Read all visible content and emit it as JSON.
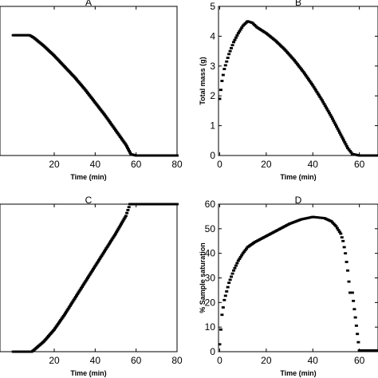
{
  "chart_data": [
    {
      "type": "scatter",
      "title": "A",
      "xlabel": "Time (min)",
      "ylabel": "",
      "xlim": [
        0,
        80
      ],
      "x_ticks": [
        20,
        40,
        60,
        80
      ],
      "y_ticks": [],
      "grid": false,
      "series": [
        {
          "points": [
            [
              0,
              1.0
            ],
            [
              8,
              1.0
            ],
            [
              10,
              0.98
            ],
            [
              15,
              0.91
            ],
            [
              20,
              0.83
            ],
            [
              25,
              0.74
            ],
            [
              30,
              0.65
            ],
            [
              35,
              0.55
            ],
            [
              40,
              0.44
            ],
            [
              45,
              0.33
            ],
            [
              50,
              0.21
            ],
            [
              55,
              0.09
            ],
            [
              57.5,
              0.01
            ],
            [
              60,
              0.0
            ],
            [
              70,
              0.0
            ],
            [
              80,
              0.0
            ]
          ]
        }
      ]
    },
    {
      "type": "scatter",
      "title": "B",
      "xlabel": "Time (min)",
      "ylabel": "Total mass (g)",
      "xlim": [
        0,
        68
      ],
      "ylim": [
        0,
        5
      ],
      "x_ticks": [
        0,
        20,
        40,
        60
      ],
      "y_ticks": [
        0,
        1,
        2,
        3,
        4,
        5
      ],
      "grid": false,
      "series": [
        {
          "points": [
            [
              0,
              1.9
            ],
            [
              1,
              2.5
            ],
            [
              2,
              2.9
            ],
            [
              4,
              3.4
            ],
            [
              6,
              3.8
            ],
            [
              8,
              4.1
            ],
            [
              10,
              4.35
            ],
            [
              12,
              4.5
            ],
            [
              14,
              4.45
            ],
            [
              16,
              4.3
            ],
            [
              20,
              4.1
            ],
            [
              24,
              3.85
            ],
            [
              28,
              3.55
            ],
            [
              32,
              3.2
            ],
            [
              36,
              2.8
            ],
            [
              40,
              2.35
            ],
            [
              44,
              1.85
            ],
            [
              48,
              1.3
            ],
            [
              52,
              0.7
            ],
            [
              55,
              0.25
            ],
            [
              57,
              0.05
            ],
            [
              60,
              0.0
            ],
            [
              68,
              0.0
            ]
          ]
        }
      ]
    },
    {
      "type": "scatter",
      "title": "C",
      "xlabel": "Time (min)",
      "ylabel": "",
      "xlim": [
        0,
        80
      ],
      "x_ticks": [
        20,
        40,
        60,
        80
      ],
      "y_ticks": [],
      "grid": false,
      "series": [
        {
          "points": [
            [
              0,
              0.0
            ],
            [
              9,
              0.0
            ],
            [
              10,
              0.01
            ],
            [
              15,
              0.07
            ],
            [
              20,
              0.15
            ],
            [
              25,
              0.25
            ],
            [
              30,
              0.36
            ],
            [
              35,
              0.47
            ],
            [
              40,
              0.58
            ],
            [
              45,
              0.69
            ],
            [
              50,
              0.8
            ],
            [
              55,
              0.92
            ],
            [
              57,
              1.0
            ],
            [
              60,
              1.0
            ],
            [
              70,
              1.0
            ],
            [
              80,
              1.0
            ]
          ]
        }
      ]
    },
    {
      "type": "scatter",
      "title": "D",
      "xlabel": "Time (min)",
      "ylabel": "% Sample saturation",
      "xlim": [
        0,
        68
      ],
      "ylim": [
        0,
        60
      ],
      "x_ticks": [
        0,
        20,
        40,
        60
      ],
      "y_ticks": [
        0,
        10,
        20,
        30,
        40,
        50,
        60
      ],
      "grid": false,
      "series": [
        {
          "points": [
            [
              0,
              3
            ],
            [
              1,
              15
            ],
            [
              2,
              21
            ],
            [
              4,
              28
            ],
            [
              6,
              33
            ],
            [
              8,
              37
            ],
            [
              10,
              40
            ],
            [
              12,
              42.5
            ],
            [
              15,
              44.5
            ],
            [
              20,
              47
            ],
            [
              25,
              49.5
            ],
            [
              30,
              52
            ],
            [
              35,
              53.8
            ],
            [
              40,
              54.8
            ],
            [
              45,
              54.3
            ],
            [
              48,
              53
            ],
            [
              50,
              51
            ],
            [
              52,
              48
            ],
            [
              53,
              45
            ],
            [
              54,
              40
            ],
            [
              55,
              33
            ],
            [
              56,
              24
            ],
            [
              57,
              24
            ],
            [
              60,
              0.5
            ],
            [
              68,
              0.5
            ]
          ]
        }
      ]
    }
  ]
}
